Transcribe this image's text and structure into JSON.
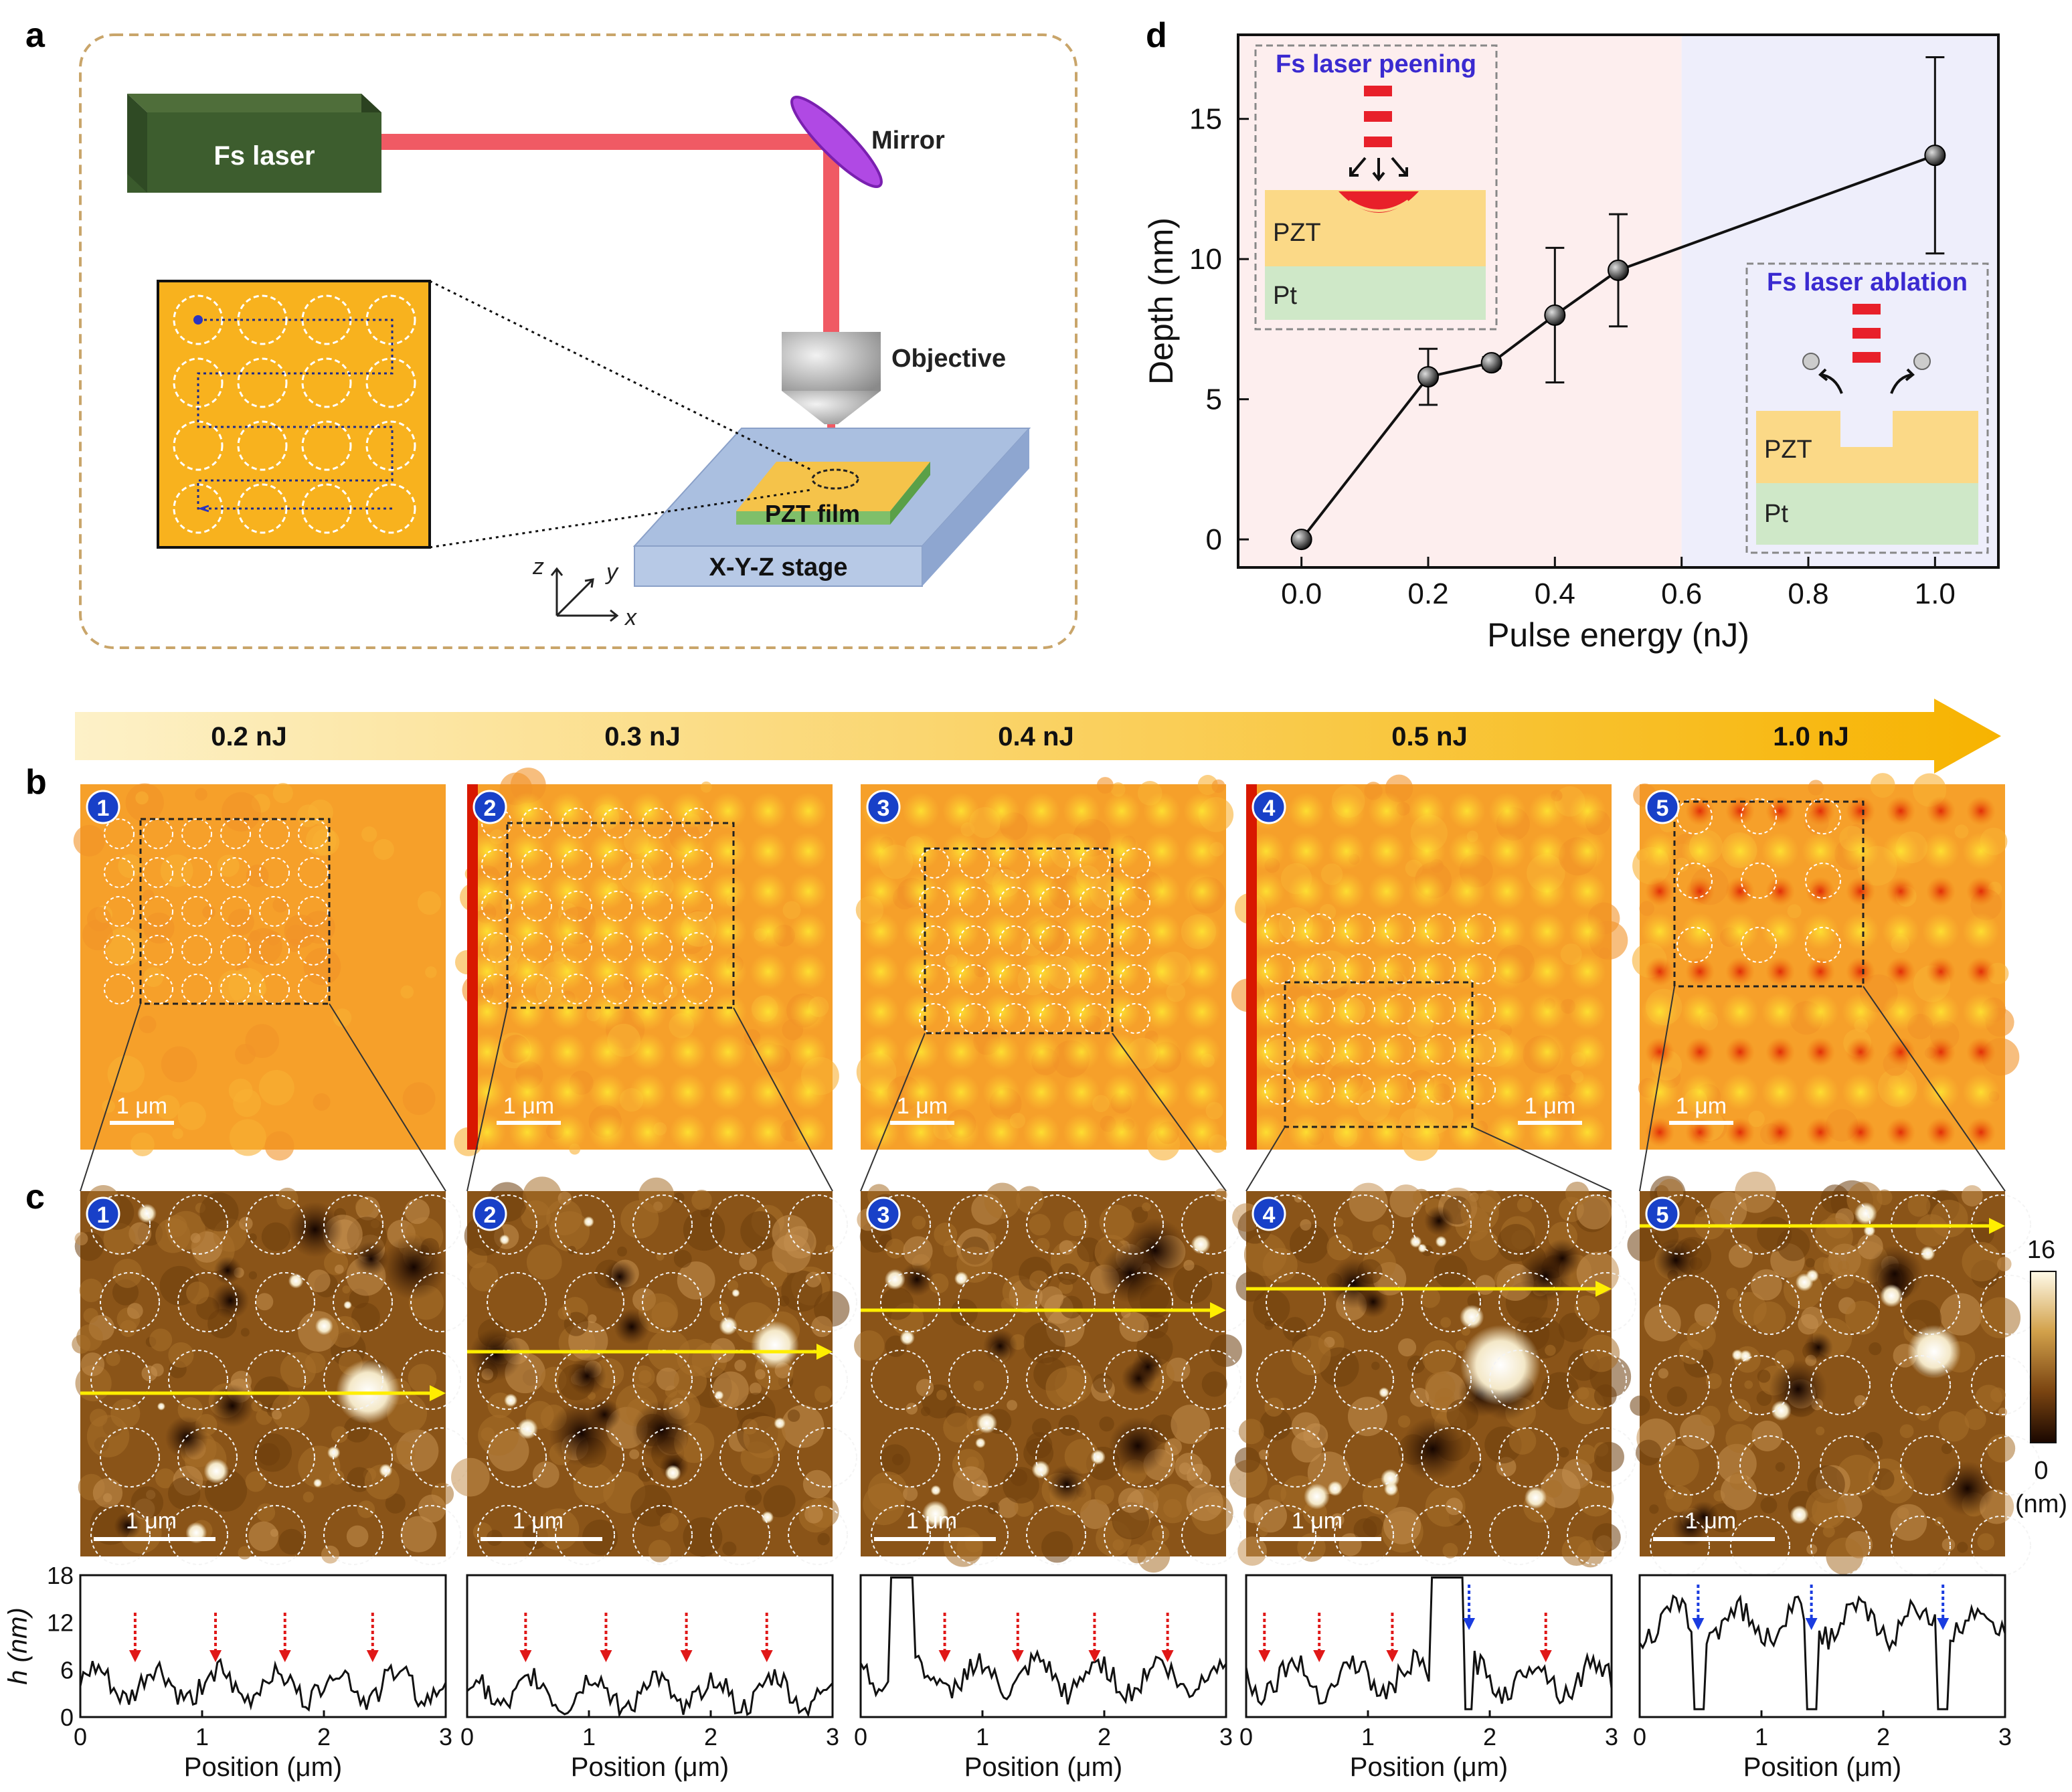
{
  "panel_labels": {
    "a": "a",
    "b": "b",
    "c": "c",
    "d": "d"
  },
  "panel_a": {
    "laser": "Fs laser",
    "mirror": "Mirror",
    "objective": "Objective",
    "film": "PZT film",
    "stage": "X-Y-Z stage",
    "axes": {
      "z": "z",
      "y": "y",
      "x": "x"
    }
  },
  "energy_arrow": {
    "labels": [
      "0.2 nJ",
      "0.3 nJ",
      "0.4 nJ",
      "0.5 nJ",
      "1.0 nJ"
    ]
  },
  "panels_b": [
    {
      "num": "1",
      "scale": "1 μm"
    },
    {
      "num": "2",
      "scale": "1 μm"
    },
    {
      "num": "3",
      "scale": "1 μm"
    },
    {
      "num": "4",
      "scale": "1 μm"
    },
    {
      "num": "5",
      "scale": "1 μm"
    }
  ],
  "panels_c": [
    {
      "num": "1",
      "scale": "1 μm"
    },
    {
      "num": "2",
      "scale": "1 μm"
    },
    {
      "num": "3",
      "scale": "1 μm"
    },
    {
      "num": "4",
      "scale": "1 μm"
    },
    {
      "num": "5",
      "scale": "1 μm"
    }
  ],
  "colorbar": {
    "max": "16",
    "min": "0",
    "unit": "(nm)"
  },
  "profiles": {
    "xlabel": "Position (μm)",
    "ylabel": "h (nm)",
    "yticks": [
      "0",
      "6",
      "12",
      "18"
    ],
    "xticks": [
      "0",
      "1",
      "2",
      "3"
    ]
  },
  "chart_data": [
    {
      "type": "line",
      "title": "",
      "xlabel": "Pulse energy (nJ)",
      "ylabel": "Depth (nm)",
      "x": [
        0.0,
        0.2,
        0.3,
        0.4,
        0.5,
        1.0
      ],
      "y": [
        0.0,
        5.8,
        6.3,
        8.0,
        9.6,
        13.7
      ],
      "yerr": [
        0.0,
        1.0,
        0.2,
        2.4,
        2.0,
        3.5
      ],
      "xlim": [
        -0.1,
        1.1
      ],
      "ylim": [
        -1.0,
        18.0
      ],
      "xticks": [
        "0.0",
        "0.2",
        "0.4",
        "0.6",
        "0.8",
        "1.0"
      ],
      "yticks": [
        "0",
        "5",
        "10",
        "15"
      ],
      "regions": [
        {
          "from": -0.1,
          "to": 0.6,
          "color": "#fdeeee"
        },
        {
          "from": 0.6,
          "to": 1.1,
          "color": "#eeeefb"
        }
      ],
      "insets": {
        "peening": {
          "title": "Fs laser peening",
          "layer1": "PZT",
          "layer2": "Pt"
        },
        "ablation": {
          "title": "Fs laser ablation",
          "layer1": "PZT",
          "layer2": "Pt"
        }
      }
    }
  ]
}
